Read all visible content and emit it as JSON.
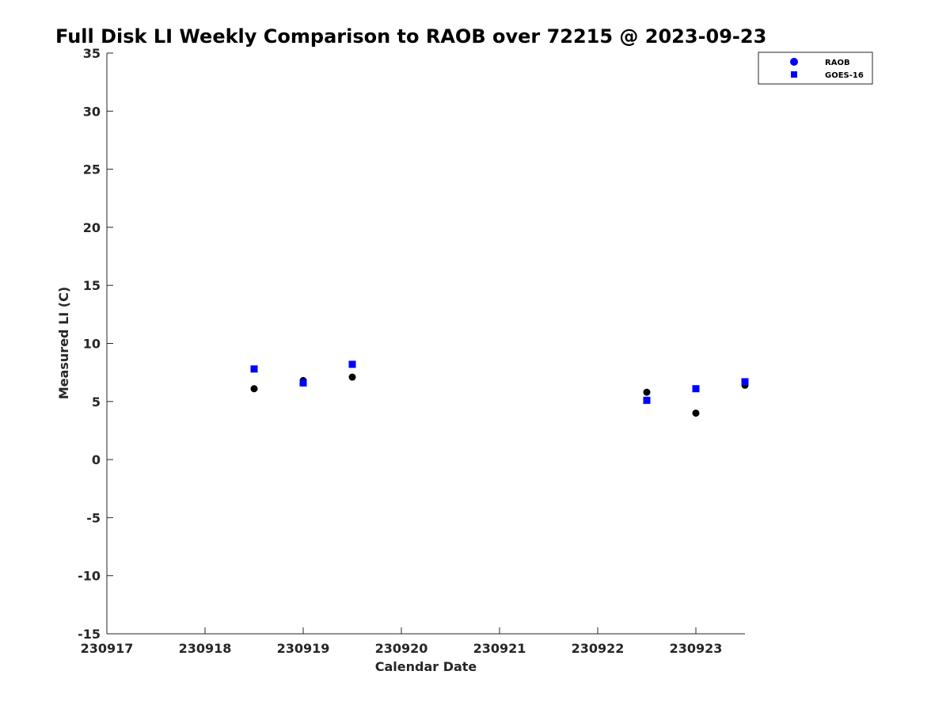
{
  "chart_data": {
    "type": "scatter",
    "title": "Full Disk LI Weekly Comparison to RAOB over 72215 @ 2023-09-23",
    "xlabel": "Calendar Date",
    "ylabel": "Measured LI (C)",
    "x_tick_labels": [
      "230917",
      "230918",
      "230919",
      "230920",
      "230921",
      "230922",
      "230923"
    ],
    "x_tick_dates": [
      "2023-09-17",
      "2023-09-18",
      "2023-09-19",
      "2023-09-20",
      "2023-09-21",
      "2023-09-22",
      "2023-09-23"
    ],
    "xlim": [
      "2023-09-17T00:00",
      "2023-09-23T12:00"
    ],
    "ylim": [
      -15,
      35
    ],
    "y_ticks": [
      -15,
      -10,
      -5,
      0,
      5,
      10,
      15,
      20,
      25,
      30,
      35
    ],
    "grid": false,
    "legend_position": "top-right",
    "series": [
      {
        "name": "RAOB",
        "marker": "circle",
        "color": "#000000",
        "legend_color": "#0000ff",
        "points": [
          {
            "x": "2023-09-18T12:00",
            "y": 6.1
          },
          {
            "x": "2023-09-19T00:00",
            "y": 6.8
          },
          {
            "x": "2023-09-19T12:00",
            "y": 7.1
          },
          {
            "x": "2023-09-22T12:00",
            "y": 5.8
          },
          {
            "x": "2023-09-23T00:00",
            "y": 4.0
          },
          {
            "x": "2023-09-23T12:00",
            "y": 6.4
          }
        ]
      },
      {
        "name": "GOES-16",
        "marker": "square",
        "color": "#0000ff",
        "legend_color": "#0000ff",
        "points": [
          {
            "x": "2023-09-18T12:00",
            "y": 7.8
          },
          {
            "x": "2023-09-19T00:00",
            "y": 6.6
          },
          {
            "x": "2023-09-19T12:00",
            "y": 8.2
          },
          {
            "x": "2023-09-22T12:00",
            "y": 5.1
          },
          {
            "x": "2023-09-23T00:00",
            "y": 6.1
          },
          {
            "x": "2023-09-23T12:00",
            "y": 6.7
          }
        ]
      }
    ]
  }
}
